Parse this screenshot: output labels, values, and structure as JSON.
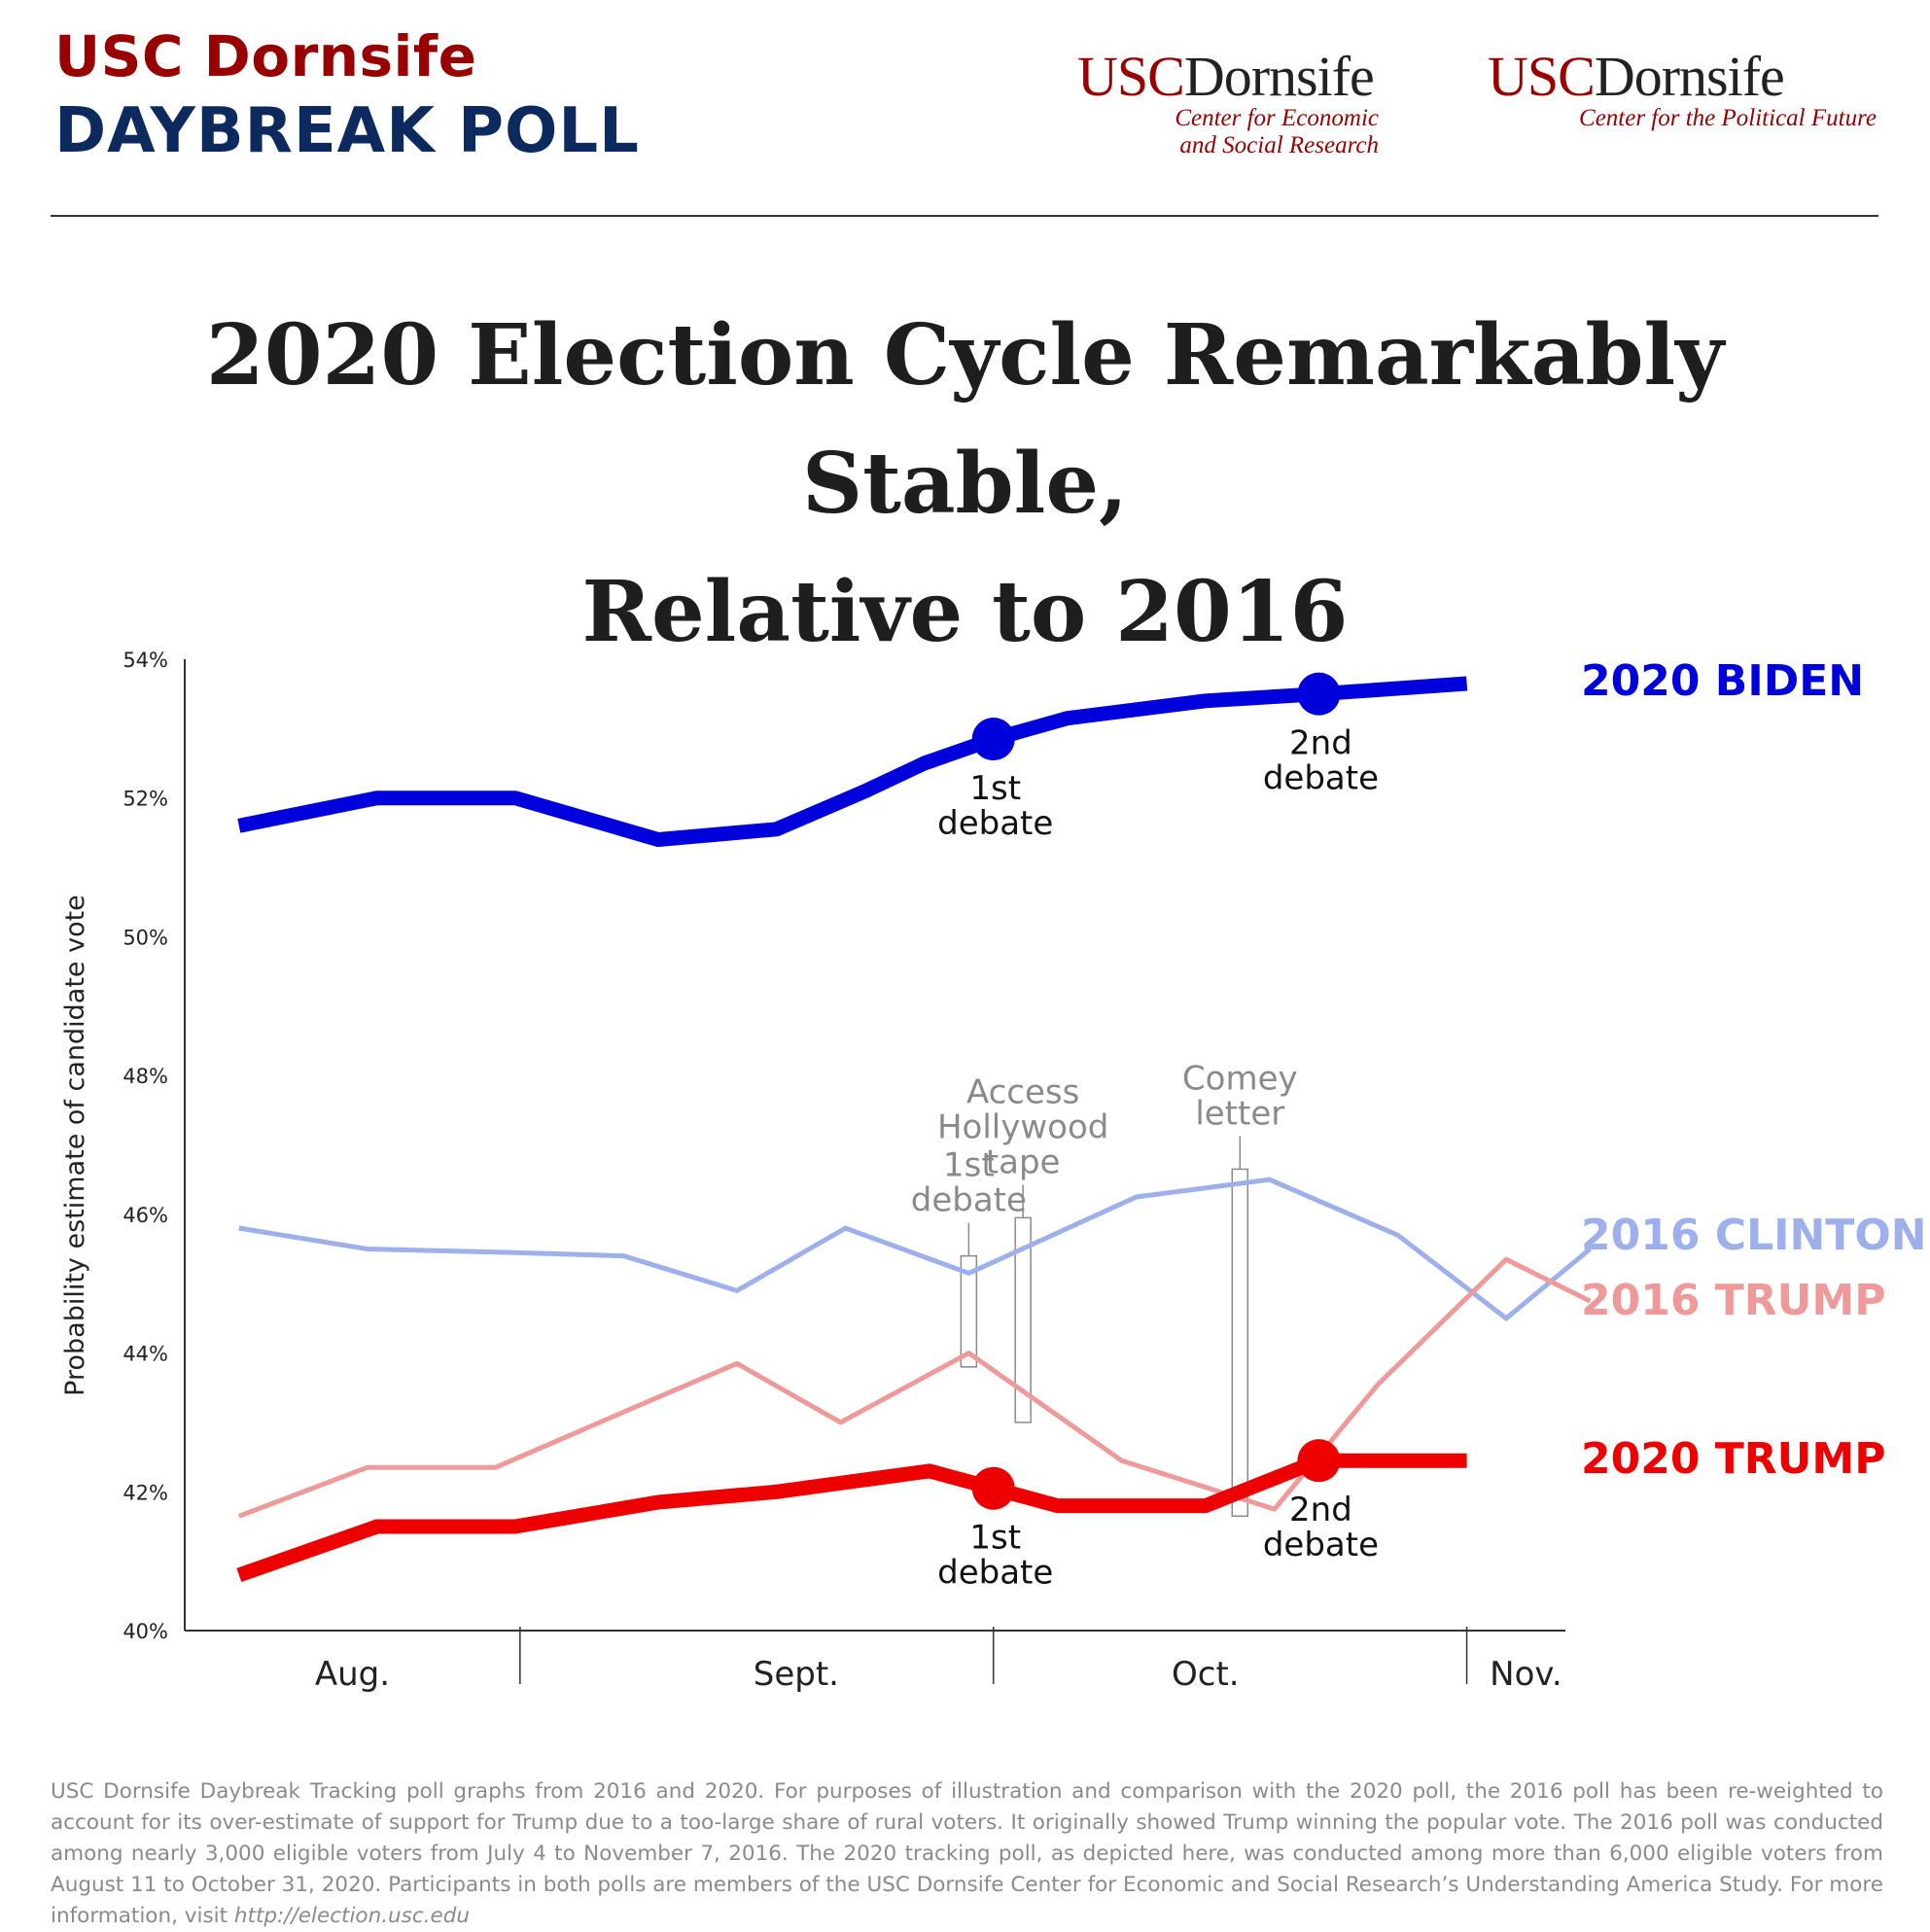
{
  "header": {
    "brand_line1": "USC Dornsife",
    "brand_line2": "DAYBREAK POLL",
    "logo_left": {
      "usc": "USC",
      "dornsife": "Dornsife",
      "sub_line1": "Center for Economic",
      "sub_line2": "and Social Research"
    },
    "logo_right": {
      "usc": "USC",
      "dornsife": "Dornsife",
      "sub_line1": "Center for the Political Future"
    }
  },
  "title_line1": "2020 Election Cycle Remarkably Stable,",
  "title_line2": "Relative to 2016",
  "chart_data": {
    "type": "line",
    "ylabel": "Probability estimate of candidate vote",
    "ylim": [
      40,
      54
    ],
    "yticks": [
      40,
      42,
      44,
      46,
      48,
      50,
      52,
      54
    ],
    "ytick_labels": [
      "40%",
      "42%",
      "44%",
      "46%",
      "48%",
      "50%",
      "52%",
      "54%"
    ],
    "xlim": [
      0,
      14
    ],
    "month_labels": [
      {
        "label": "Aug.",
        "x": 1.7
      },
      {
        "label": "Sept.",
        "x": 6.2
      },
      {
        "label": "Oct.",
        "x": 10.35
      },
      {
        "label": "Nov.",
        "x": 13.6
      }
    ],
    "month_dividers": [
      3.4,
      8.2,
      13.0
    ],
    "series": [
      {
        "name": "2020 BIDEN",
        "color": "#0000dd",
        "x": [
          0.55,
          1.95,
          3.35,
          4.8,
          6.0,
          6.9,
          7.5,
          8.2,
          8.95,
          10.35,
          11.5,
          13.0
        ],
        "values": [
          51.6,
          52.0,
          52.0,
          51.4,
          51.55,
          52.1,
          52.5,
          52.85,
          53.15,
          53.4,
          53.5,
          53.65
        ]
      },
      {
        "name": "2016 CLINTON",
        "color": "#9eb0ec",
        "x": [
          0.55,
          1.85,
          3.3,
          4.45,
          5.6,
          6.7,
          7.95,
          9.65,
          11.0,
          12.3,
          13.4,
          14.25
        ],
        "values": [
          45.8,
          45.5,
          45.45,
          45.4,
          44.9,
          45.8,
          45.15,
          46.25,
          46.5,
          45.7,
          44.5,
          45.5
        ]
      },
      {
        "name": "2016 TRUMP",
        "color": "#ee9a9a",
        "x": [
          0.55,
          1.85,
          3.15,
          4.45,
          5.6,
          6.65,
          7.95,
          9.5,
          11.05,
          12.1,
          13.4,
          14.25
        ],
        "values": [
          41.65,
          42.35,
          42.35,
          43.15,
          43.85,
          43.0,
          44.0,
          42.45,
          41.75,
          43.55,
          45.35,
          44.75
        ]
      },
      {
        "name": "2020 TRUMP",
        "color": "#ee0000",
        "x": [
          0.55,
          1.95,
          3.35,
          4.8,
          6.0,
          7.55,
          8.2,
          8.85,
          10.35,
          11.5,
          13.0
        ],
        "values": [
          40.8,
          41.5,
          41.5,
          41.85,
          42.0,
          42.3,
          42.05,
          41.8,
          41.8,
          42.45,
          42.45
        ]
      }
    ],
    "debate_markers_2020": [
      {
        "series": "2020 BIDEN",
        "x": 8.2,
        "value": 52.85,
        "label_line1": "1st",
        "label_line2": "debate"
      },
      {
        "series": "2020 BIDEN",
        "x": 11.5,
        "value": 53.5,
        "label_line1": "2nd",
        "label_line2": "debate"
      },
      {
        "series": "2020 TRUMP",
        "x": 8.2,
        "value": 42.05,
        "label_line1": "1st",
        "label_line2": "debate"
      },
      {
        "series": "2020 TRUMP",
        "x": 11.5,
        "value": 42.45,
        "label_line1": "2nd",
        "label_line2": "debate"
      }
    ],
    "annotations_2016": [
      {
        "lines": [
          "1st",
          "debate"
        ],
        "x": 7.95,
        "ymin": 43.8,
        "ymax": 45.4
      },
      {
        "lines": [
          "Access",
          "Hollywood",
          "tape"
        ],
        "x": 8.5,
        "ymin": 43.0,
        "ymax": 45.95
      },
      {
        "lines": [
          "Comey",
          "letter"
        ],
        "x": 10.7,
        "ymin": 41.65,
        "ymax": 46.65
      }
    ],
    "legend_labels": [
      "2020 BIDEN",
      "2016 CLINTON",
      "2016 TRUMP",
      "2020 TRUMP"
    ]
  },
  "footnote": {
    "text": "USC Dornsife Daybreak Tracking poll graphs from 2016 and 2020. For purposes of illustration and comparison with the 2020 poll, the 2016 poll has been re-weighted to account for its over-estimate of support for Trump due to a too-large share of rural voters. It originally showed Trump winning the popular vote. The 2016 poll was conducted among nearly 3,000 eligible voters from July 4 to November 7, 2016. The 2020 tracking poll, as depicted here, was conducted among more than 6,000 eligible voters from August 11 to October 31, 2020. Participants in both polls are members of the USC Dornsife Center for Economic and Social Research’s Understanding America Study. For more information, visit",
    "url": "http://election.usc.edu"
  }
}
